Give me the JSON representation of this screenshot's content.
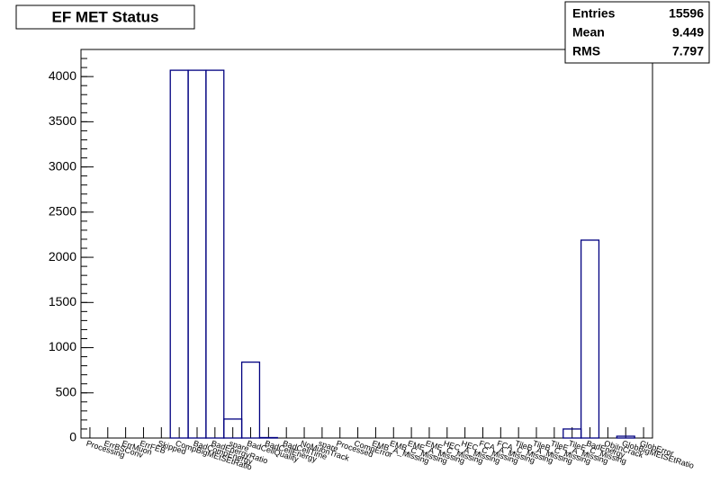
{
  "chart_data": {
    "type": "histogram",
    "title": "EF MET Status",
    "categories": [
      "Processing",
      "ErrBSConv",
      "ErrMuon",
      "ErrFEB",
      "Skipped",
      "CompBigMEtSEtRatio",
      "BadCompEnergy",
      "BadEnergyRatio",
      "spare",
      "BadCellQuality",
      "BadCellEnergy",
      "BadCellTime",
      "NoMuonTrack",
      "spare",
      "Processed",
      "CompError",
      "EMB_A_Missing",
      "EMB_C_Missing",
      "EME_A_Missing",
      "EME_C_Missing",
      "HEC_A_Missing",
      "HEC_C_Missing",
      "FCA_A_Missing",
      "FCA_C_Missing",
      "TileB_A_Missing",
      "TileB_C_Missing",
      "TileE_A_Missing",
      "TileE_C_Missing",
      "BadEnergy",
      "ObjInCrack",
      "GlobBigMEtSEtRatio",
      "GlobError"
    ],
    "values": [
      0,
      0,
      0,
      0,
      0,
      4070,
      4070,
      4070,
      210,
      840,
      5,
      0,
      0,
      0,
      0,
      0,
      0,
      0,
      0,
      0,
      0,
      0,
      0,
      0,
      0,
      0,
      0,
      100,
      2190,
      0,
      20,
      0
    ],
    "color": "#000080",
    "ylim": [
      0,
      4300
    ],
    "yticks": [
      0,
      500,
      1000,
      1500,
      2000,
      2500,
      3000,
      3500,
      4000
    ],
    "grid": false,
    "stats": [
      {
        "label": "Entries",
        "value": "15596"
      },
      {
        "label": "Mean",
        "value": "9.449"
      },
      {
        "label": "RMS",
        "value": "7.797"
      }
    ]
  }
}
